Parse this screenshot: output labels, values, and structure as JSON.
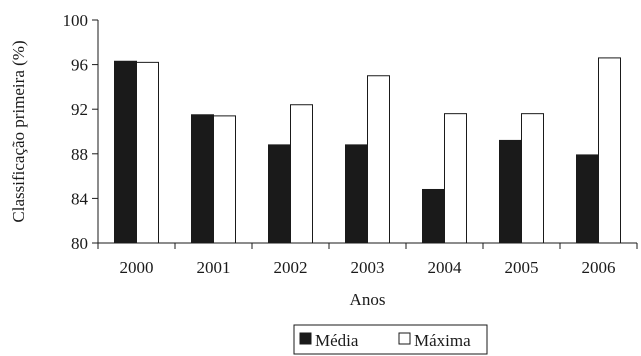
{
  "chart_data": {
    "type": "bar",
    "title": "",
    "xlabel": "Anos",
    "ylabel": "Classificação primeira (%)",
    "categories": [
      "2000",
      "2001",
      "2002",
      "2003",
      "2004",
      "2005",
      "2006"
    ],
    "series": [
      {
        "name": "Média",
        "values": [
          96.3,
          91.5,
          88.8,
          88.8,
          84.8,
          89.2,
          87.9
        ],
        "color": "#1a1a1a"
      },
      {
        "name": "Máxima",
        "values": [
          96.2,
          91.4,
          92.4,
          95.0,
          91.6,
          91.6,
          96.6
        ],
        "color": "#ffffff"
      }
    ],
    "ylim": [
      80,
      100
    ],
    "yticks": [
      80,
      84,
      88,
      92,
      96,
      100
    ],
    "grid": false,
    "legend": "bottom-center"
  }
}
